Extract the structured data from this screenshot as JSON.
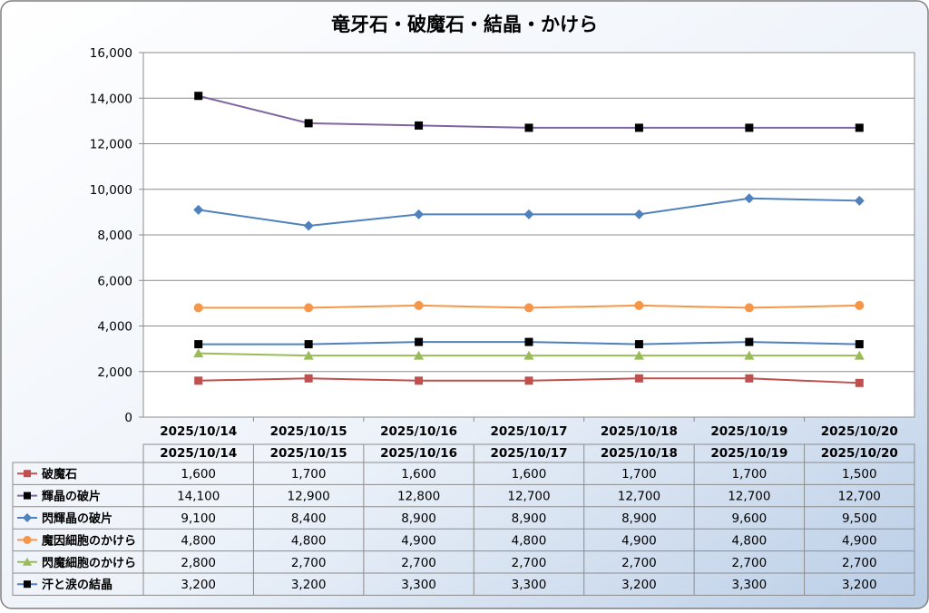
{
  "chart_data": {
    "type": "line",
    "title": "竜牙石・破魔石・結晶・かけら",
    "categories": [
      "2025/10/14",
      "2025/10/15",
      "2025/10/16",
      "2025/10/17",
      "2025/10/18",
      "2025/10/19",
      "2025/10/20"
    ],
    "ylim": [
      0,
      16000
    ],
    "yticks": [
      0,
      2000,
      4000,
      6000,
      8000,
      10000,
      12000,
      14000,
      16000
    ],
    "ytick_labels": [
      "0",
      "2,000",
      "4,000",
      "6,000",
      "8,000",
      "10,000",
      "12,000",
      "14,000",
      "16,000"
    ],
    "grid": true,
    "legend": "data-table-left",
    "series": [
      {
        "name": "破魔石",
        "color": "#c0504d",
        "marker": "square",
        "values": [
          1600,
          1700,
          1600,
          1600,
          1700,
          1700,
          1500
        ],
        "labels": [
          "1,600",
          "1,700",
          "1,600",
          "1,600",
          "1,700",
          "1,700",
          "1,500"
        ]
      },
      {
        "name": "輝晶の破片",
        "color": "#8064a2",
        "marker": "square-black",
        "values": [
          14100,
          12900,
          12800,
          12700,
          12700,
          12700,
          12700
        ],
        "labels": [
          "14,100",
          "12,900",
          "12,800",
          "12,700",
          "12,700",
          "12,700",
          "12,700"
        ]
      },
      {
        "name": "閃輝晶の破片",
        "color": "#4f81bd",
        "marker": "diamond",
        "values": [
          9100,
          8400,
          8900,
          8900,
          8900,
          9600,
          9500
        ],
        "labels": [
          "9,100",
          "8,400",
          "8,900",
          "8,900",
          "8,900",
          "9,600",
          "9,500"
        ]
      },
      {
        "name": "魔因細胞のかけら",
        "color": "#f79646",
        "marker": "circle",
        "values": [
          4800,
          4800,
          4900,
          4800,
          4900,
          4800,
          4900
        ],
        "labels": [
          "4,800",
          "4,800",
          "4,900",
          "4,800",
          "4,900",
          "4,800",
          "4,900"
        ]
      },
      {
        "name": "閃魔細胞のかけら",
        "color": "#9bbb59",
        "marker": "triangle",
        "values": [
          2800,
          2700,
          2700,
          2700,
          2700,
          2700,
          2700
        ],
        "labels": [
          "2,800",
          "2,700",
          "2,700",
          "2,700",
          "2,700",
          "2,700",
          "2,700"
        ]
      },
      {
        "name": "汗と涙の結晶",
        "color": "#4f81bd",
        "marker": "square-black",
        "values": [
          3200,
          3200,
          3300,
          3300,
          3200,
          3300,
          3200
        ],
        "labels": [
          "3,200",
          "3,200",
          "3,300",
          "3,300",
          "3,200",
          "3,300",
          "3,200"
        ]
      }
    ]
  }
}
